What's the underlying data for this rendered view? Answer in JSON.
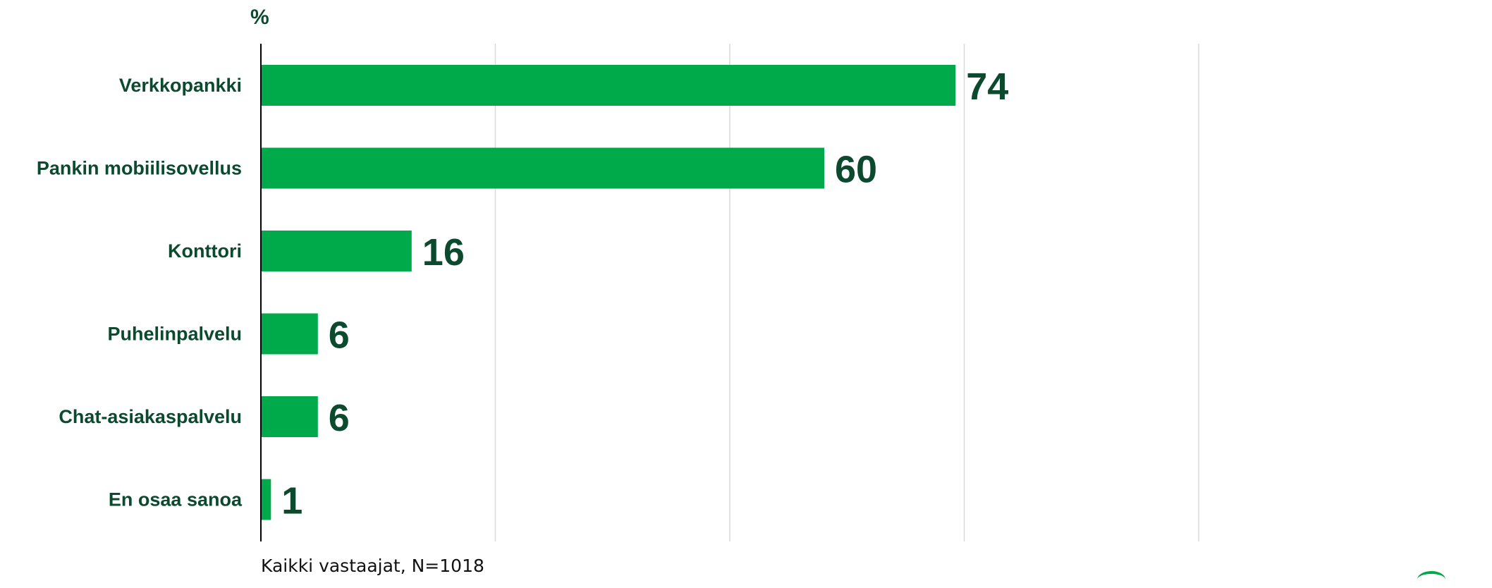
{
  "chart_data": {
    "type": "bar",
    "orientation": "horizontal",
    "unit_label": "%",
    "categories": [
      "Verkkopankki",
      "Pankin mobiilisovellus",
      "Konttori",
      "Puhelinpalvelu",
      "Chat-asiakaspalvelu",
      "En osaa sanoa"
    ],
    "values": [
      74,
      60,
      16,
      6,
      6,
      1
    ],
    "xlim": [
      0,
      100
    ],
    "grid": true,
    "legend": "none",
    "colors": {
      "bar": "#00aa4a",
      "label_text": "#0b4a2e",
      "value_text": "#0b4a2e",
      "gridline": "#d9d9d9",
      "axis": "#000000"
    },
    "footnote": "Kaikki vastaajat, N=1018"
  }
}
